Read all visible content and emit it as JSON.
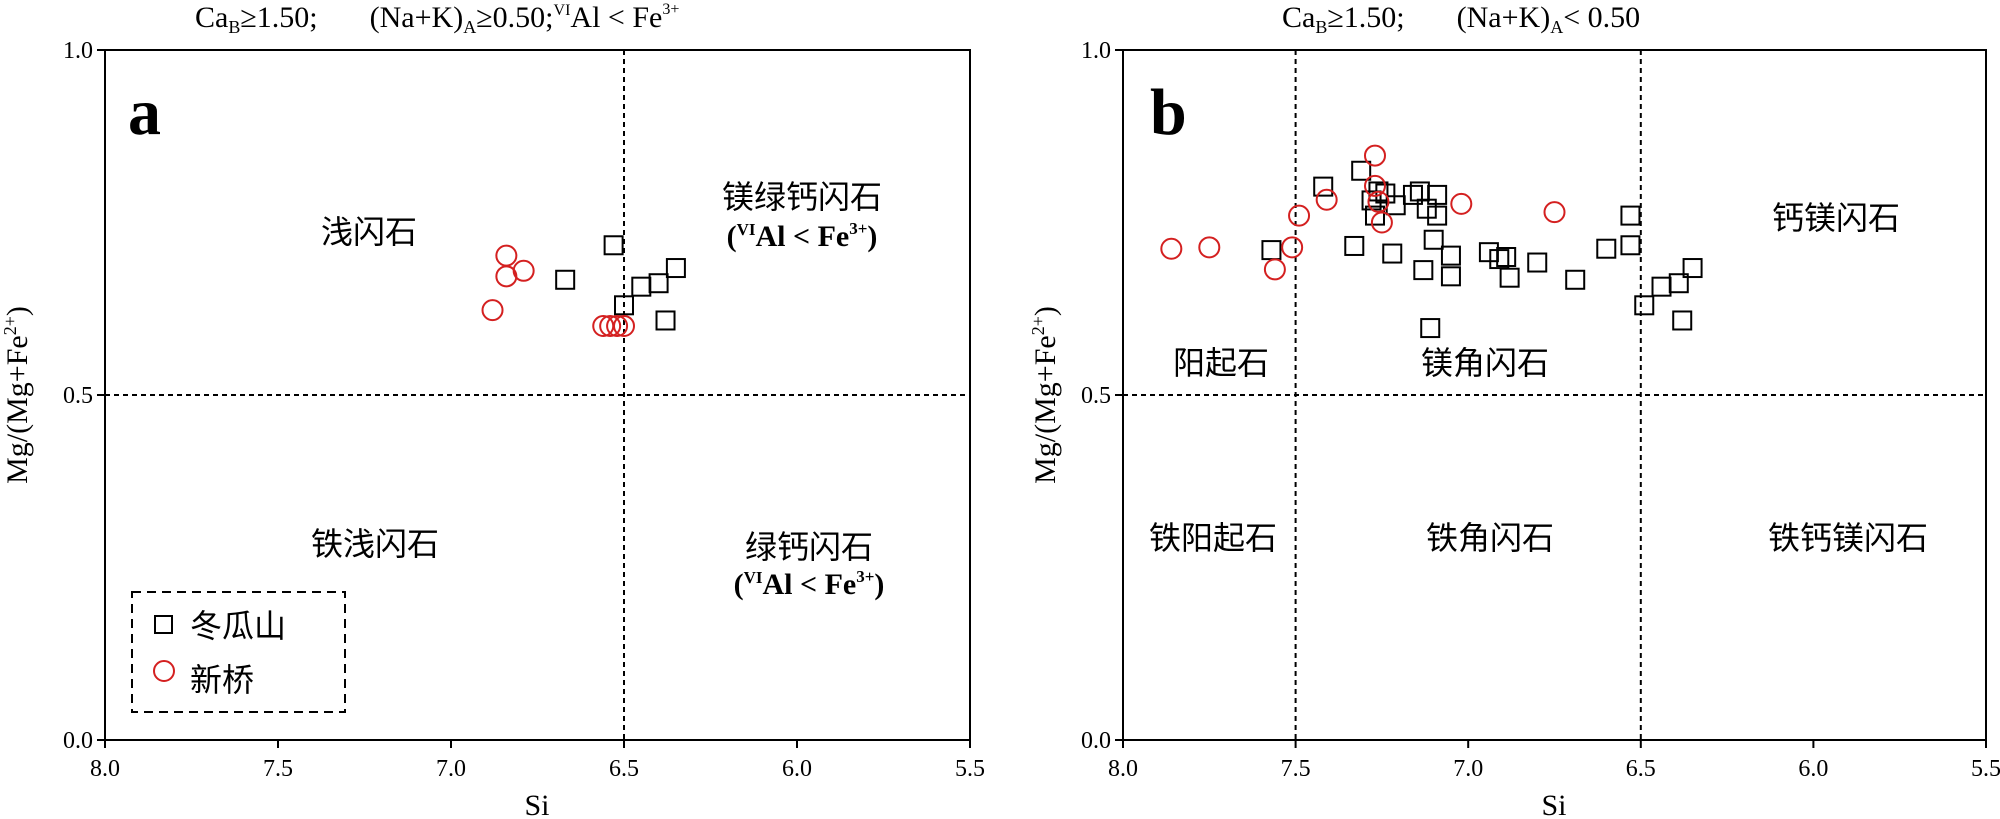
{
  "chart_data": [
    {
      "type": "scatter",
      "panel_label": "a",
      "header": {
        "p1_main": "Ca",
        "p1_sub": "B",
        "p1_rest": "≥1.50;",
        "p2_main": "(Na+K)",
        "p2_sub": "A",
        "p2_rest": "≥0.50;",
        "p3_sup": "VI",
        "p3_main": "Al < Fe",
        "p3_sup2": "3+"
      },
      "xlabel": "Si",
      "ylabel": "Mg/(Mg+Fe",
      "ylabel_sup": "2+",
      "ylabel_end": ")",
      "xlim": [
        8.0,
        5.5
      ],
      "ylim": [
        0.0,
        1.0
      ],
      "x_reversed": true,
      "xticks": [
        "8.0",
        "7.5",
        "7.0",
        "6.5",
        "6.0",
        "5.5"
      ],
      "yticks": [
        "0.0",
        "0.5",
        "1.0"
      ],
      "dividers": {
        "x": 6.5,
        "y": 0.5
      },
      "regions": {
        "tr_line1": "镁绿钙闪石",
        "tr_line2_open": "(",
        "tr_line2_sup": "VI",
        "tr_line2_main": "Al < Fe",
        "tr_line2_sup2": "3+",
        "tr_line2_close": ")",
        "tl": "浅闪石",
        "bl": "铁浅闪石",
        "br_line1": "绿钙闪石",
        "br_line2_open": "(",
        "br_line2_sup": "VI",
        "br_line2_main": "Al < Fe",
        "br_line2_sup2": "3+",
        "br_line2_close": ")"
      },
      "legend": {
        "placement": "bottom-left",
        "items": [
          {
            "symbol": "square",
            "label": "冬瓜山"
          },
          {
            "symbol": "circle",
            "label": "新桥"
          }
        ]
      },
      "series": [
        {
          "name": "冬瓜山",
          "symbol": "square",
          "color": "#000000",
          "points": [
            [
              6.67,
              0.667
            ],
            [
              6.53,
              0.717
            ],
            [
              6.5,
              0.63
            ],
            [
              6.45,
              0.657
            ],
            [
              6.4,
              0.662
            ],
            [
              6.38,
              0.608
            ],
            [
              6.35,
              0.684
            ]
          ]
        },
        {
          "name": "新桥",
          "symbol": "circle",
          "color": "#d42020",
          "points": [
            [
              6.88,
              0.623
            ],
            [
              6.84,
              0.702
            ],
            [
              6.84,
              0.672
            ],
            [
              6.79,
              0.68
            ],
            [
              6.56,
              0.6
            ],
            [
              6.54,
              0.6
            ],
            [
              6.52,
              0.6
            ],
            [
              6.5,
              0.6
            ]
          ]
        }
      ]
    },
    {
      "type": "scatter",
      "panel_label": "b",
      "header": {
        "p1_main": "Ca",
        "p1_sub": "B",
        "p1_rest": "≥1.50;",
        "p2_main": "(Na+K)",
        "p2_sub": "A",
        "p2_rest": "< 0.50"
      },
      "xlabel": "Si",
      "ylabel": "Mg/(Mg+Fe",
      "ylabel_sup": "2+",
      "ylabel_end": ")",
      "xlim": [
        8.0,
        5.5
      ],
      "ylim": [
        0.0,
        1.0
      ],
      "x_reversed": true,
      "xticks": [
        "8.0",
        "7.5",
        "7.0",
        "6.5",
        "6.0",
        "5.5"
      ],
      "yticks": [
        "0.0",
        "0.5",
        "1.0"
      ],
      "dividers": {
        "x": [
          7.5,
          6.5
        ],
        "y": 0.5
      },
      "regions": {
        "tl": "阳起石",
        "tm": "镁角闪石",
        "tr": "钙镁闪石",
        "bl": "铁阳起石",
        "bm": "铁角闪石",
        "br": "铁钙镁闪石"
      },
      "series": [
        {
          "name": "冬瓜山",
          "symbol": "square",
          "color": "#000000",
          "points": [
            [
              7.57,
              0.71
            ],
            [
              7.42,
              0.802
            ],
            [
              7.33,
              0.716
            ],
            [
              7.31,
              0.825
            ],
            [
              7.28,
              0.782
            ],
            [
              7.27,
              0.76
            ],
            [
              7.26,
              0.795
            ],
            [
              7.24,
              0.792
            ],
            [
              7.21,
              0.775
            ],
            [
              7.22,
              0.705
            ],
            [
              7.16,
              0.79
            ],
            [
              7.14,
              0.795
            ],
            [
              7.13,
              0.681
            ],
            [
              7.12,
              0.77
            ],
            [
              7.1,
              0.725
            ],
            [
              7.09,
              0.79
            ],
            [
              7.09,
              0.76
            ],
            [
              7.11,
              0.597
            ],
            [
              7.05,
              0.672
            ],
            [
              7.05,
              0.702
            ],
            [
              6.94,
              0.707
            ],
            [
              6.91,
              0.697
            ],
            [
              6.89,
              0.7
            ],
            [
              6.88,
              0.67
            ],
            [
              6.8,
              0.692
            ],
            [
              6.69,
              0.667
            ],
            [
              6.6,
              0.712
            ],
            [
              6.53,
              0.76
            ],
            [
              6.53,
              0.717
            ],
            [
              6.49,
              0.63
            ],
            [
              6.44,
              0.657
            ],
            [
              6.39,
              0.662
            ],
            [
              6.38,
              0.608
            ],
            [
              6.35,
              0.684
            ]
          ]
        },
        {
          "name": "新桥",
          "symbol": "circle",
          "color": "#d42020",
          "points": [
            [
              7.86,
              0.712
            ],
            [
              7.75,
              0.714
            ],
            [
              7.56,
              0.682
            ],
            [
              7.51,
              0.714
            ],
            [
              7.49,
              0.76
            ],
            [
              7.41,
              0.783
            ],
            [
              7.27,
              0.847
            ],
            [
              7.27,
              0.803
            ],
            [
              7.26,
              0.78
            ],
            [
              7.25,
              0.75
            ],
            [
              7.02,
              0.777
            ],
            [
              6.75,
              0.765
            ]
          ]
        }
      ]
    }
  ]
}
